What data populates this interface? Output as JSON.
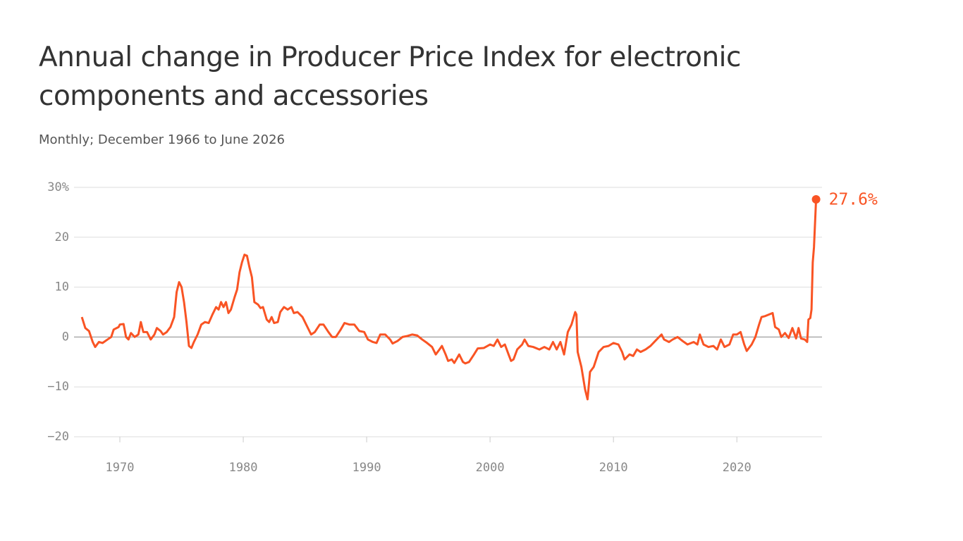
{
  "chart_data": {
    "type": "line",
    "title": "Annual change in Producer Price Index for electronic components and accessories",
    "subtitle": "Monthly; December 1966 to June 2026",
    "x": [
      1966.92,
      1967.2,
      1967.5,
      1967.8,
      1968.0,
      1968.3,
      1968.6,
      1969.0,
      1969.3,
      1969.5,
      1969.9,
      1970.0,
      1970.3,
      1970.5,
      1970.7,
      1970.9,
      1971.2,
      1971.5,
      1971.7,
      1971.9,
      1972.2,
      1972.5,
      1972.8,
      1973.0,
      1973.3,
      1973.5,
      1973.8,
      1974.1,
      1974.4,
      1974.6,
      1974.8,
      1975.0,
      1975.2,
      1975.4,
      1975.6,
      1975.8,
      1976.0,
      1976.3,
      1976.6,
      1976.9,
      1977.2,
      1977.5,
      1977.8,
      1978.0,
      1978.2,
      1978.4,
      1978.6,
      1978.8,
      1979.0,
      1979.3,
      1979.5,
      1979.7,
      1979.9,
      1980.1,
      1980.3,
      1980.5,
      1980.7,
      1980.9,
      1981.2,
      1981.4,
      1981.6,
      1981.9,
      1982.1,
      1982.3,
      1982.5,
      1982.8,
      1983.0,
      1983.3,
      1983.6,
      1983.9,
      1984.1,
      1984.4,
      1984.8,
      1985.2,
      1985.5,
      1985.8,
      1986.2,
      1986.5,
      1986.9,
      1987.2,
      1987.5,
      1987.9,
      1988.2,
      1988.6,
      1989.0,
      1989.4,
      1989.8,
      1990.1,
      1990.5,
      1990.8,
      1991.1,
      1991.5,
      1991.9,
      1992.1,
      1992.5,
      1992.9,
      1993.3,
      1993.7,
      1994.1,
      1994.5,
      1994.9,
      1995.3,
      1995.6,
      1995.9,
      1996.1,
      1996.4,
      1996.6,
      1996.9,
      1997.1,
      1997.5,
      1997.8,
      1998.0,
      1998.3,
      1998.7,
      1999.0,
      1999.5,
      2000.0,
      2000.3,
      2000.6,
      2000.9,
      2001.2,
      2001.5,
      2001.7,
      2001.9,
      2002.2,
      2002.6,
      2002.8,
      2003.1,
      2003.5,
      2004.0,
      2004.4,
      2004.8,
      2005.1,
      2005.4,
      2005.7,
      2006.0,
      2006.3,
      2006.6,
      2006.9,
      2007.0,
      2007.1,
      2007.4,
      2007.7,
      2007.9,
      2008.1,
      2008.4,
      2008.8,
      2009.2,
      2009.6,
      2010.0,
      2010.4,
      2010.7,
      2010.9,
      2011.3,
      2011.6,
      2011.9,
      2012.2,
      2012.6,
      2013.0,
      2013.5,
      2013.9,
      2014.1,
      2014.5,
      2014.8,
      2015.2,
      2015.6,
      2016.0,
      2016.5,
      2016.8,
      2017.0,
      2017.3,
      2017.7,
      2018.1,
      2018.4,
      2018.7,
      2019.0,
      2019.4,
      2019.7,
      2020.0,
      2020.3,
      2020.6,
      2020.8,
      2021.2,
      2021.5,
      2021.8,
      2022.0,
      2022.3,
      2022.6,
      2022.9,
      2023.1,
      2023.4,
      2023.6,
      2023.9,
      2024.2,
      2024.5,
      2024.8,
      2025.0,
      2025.2,
      2025.5,
      2025.7,
      2025.8,
      2025.95,
      2026.05,
      2026.15,
      2026.25,
      2026.42
    ],
    "series": [
      {
        "color": "#f95424",
        "values": [
          4,
          1.8,
          1.2,
          -1,
          -2,
          -1,
          -1.2,
          -0.5,
          0,
          1.5,
          2,
          2.5,
          2.6,
          0,
          -0.5,
          0.8,
          0,
          0.5,
          3,
          1,
          1,
          -0.5,
          0.5,
          1.8,
          1.2,
          0.5,
          1,
          2,
          4,
          9,
          11,
          10,
          7,
          3,
          -1.8,
          -2.2,
          -1,
          0.5,
          2.5,
          3,
          2.8,
          4.5,
          6,
          5.5,
          7,
          6,
          7,
          4.8,
          5.5,
          8,
          9.5,
          13,
          15,
          16.5,
          16.3,
          14,
          12,
          7,
          6.5,
          5.8,
          6,
          3.5,
          3,
          4,
          2.8,
          3,
          5,
          6,
          5.5,
          6,
          4.8,
          5,
          4,
          2,
          0.5,
          1,
          2.5,
          2.5,
          1,
          0,
          0,
          1.5,
          2.8,
          2.5,
          2.5,
          1.2,
          1,
          -0.5,
          -1,
          -1.2,
          0.5,
          0.5,
          -0.5,
          -1.3,
          -0.8,
          0,
          0.2,
          0.5,
          0.3,
          -0.5,
          -1.2,
          -2,
          -3.5,
          -2.5,
          -1.8,
          -3.5,
          -4.8,
          -4.5,
          -5.2,
          -3.5,
          -5,
          -5.3,
          -5,
          -3.5,
          -2.3,
          -2.2,
          -1.5,
          -1.8,
          -0.5,
          -2,
          -1.5,
          -3.5,
          -4.8,
          -4.5,
          -2.5,
          -1.5,
          -0.5,
          -1.8,
          -2,
          -2.5,
          -2,
          -2.5,
          -1,
          -2.5,
          -1,
          -3.5,
          1,
          2.5,
          5,
          4.5,
          -3,
          -6,
          -10.5,
          -12.5,
          -7,
          -6,
          -3,
          -2,
          -1.8,
          -1.2,
          -1.5,
          -3,
          -4.5,
          -3.5,
          -3.8,
          -2.5,
          -3,
          -2.5,
          -1.8,
          -0.5,
          0.5,
          -0.5,
          -1,
          -0.5,
          0,
          -0.8,
          -1.5,
          -1,
          -1.5,
          0.5,
          -1.5,
          -2,
          -1.8,
          -2.5,
          -0.5,
          -2,
          -1.5,
          0.5,
          0.5,
          1,
          -1.5,
          -2.8,
          -1.5,
          0,
          2.5,
          4,
          4.2,
          4.5,
          4.8,
          2,
          1.5,
          0,
          0.8,
          -0.2,
          1.8,
          -0.3,
          1.8,
          -0.3,
          -0.5,
          -1,
          3.5,
          3.8,
          5.5,
          15,
          18,
          27.6
        ]
      }
    ],
    "end_label": "27.6%",
    "xlim": [
      1966,
      2026.9
    ],
    "xticks": [
      1970,
      1980,
      1990,
      2000,
      2010,
      2020
    ],
    "ylim": [
      -20,
      30
    ],
    "yticks": [
      {
        "value": -20,
        "label": "−20"
      },
      {
        "value": -10,
        "label": "−10"
      },
      0,
      10,
      20,
      {
        "value": 30,
        "label": "30%"
      }
    ],
    "grid": true
  }
}
